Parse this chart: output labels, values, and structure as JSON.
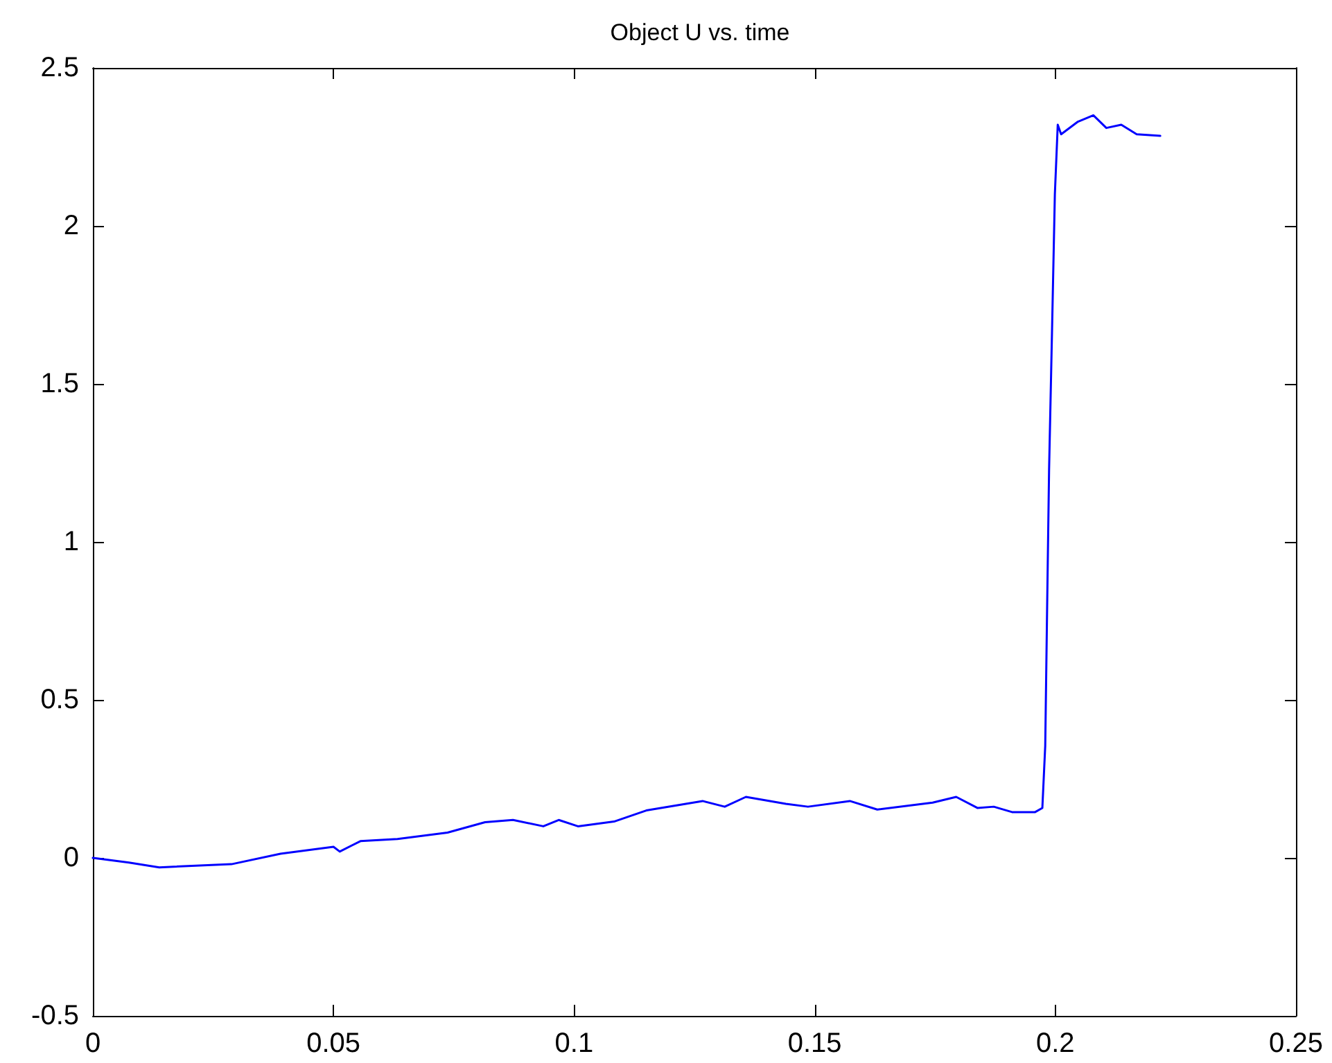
{
  "chart_data": {
    "type": "line",
    "title": "Object U vs. time",
    "series": [
      {
        "color": "#0000ff",
        "x": [
          0,
          0.0075,
          0.0138,
          0.0288,
          0.039,
          0.05,
          0.0513,
          0.0556,
          0.0633,
          0.0737,
          0.0815,
          0.0873,
          0.0936,
          0.0968,
          0.1008,
          0.1083,
          0.115,
          0.1267,
          0.1313,
          0.1357,
          0.144,
          0.1486,
          0.1573,
          0.163,
          0.1745,
          0.1794,
          0.1838,
          0.1872,
          0.191,
          0.1958,
          0.1973,
          0.1979,
          0.1983,
          0.1987,
          0.1993,
          0.1999,
          0.2005,
          0.2012,
          0.2047,
          0.2079,
          0.2106,
          0.2137,
          0.2169,
          0.2218
        ],
        "values": [
          0,
          -0.015,
          -0.03,
          -0.02,
          0.013,
          0.035,
          0.02,
          0.053,
          0.06,
          0.08,
          0.113,
          0.12,
          0.1,
          0.12,
          0.1,
          0.115,
          0.15,
          0.18,
          0.162,
          0.193,
          0.171,
          0.162,
          0.18,
          0.153,
          0.175,
          0.193,
          0.158,
          0.162,
          0.145,
          0.145,
          0.158,
          0.355,
          0.8,
          1.23,
          1.66,
          2.1,
          2.32,
          2.29,
          2.33,
          2.35,
          2.31,
          2.32,
          2.29,
          2.285
        ]
      }
    ],
    "xlim": [
      0,
      0.25
    ],
    "xticks": [
      0,
      0.05,
      0.1,
      0.15,
      0.2,
      0.25
    ],
    "ylim": [
      -0.5,
      2.5
    ],
    "yticks": [
      -0.5,
      0,
      0.5,
      1,
      1.5,
      2,
      2.5
    ],
    "grid": false,
    "marker": "none",
    "line_style": "solid"
  }
}
